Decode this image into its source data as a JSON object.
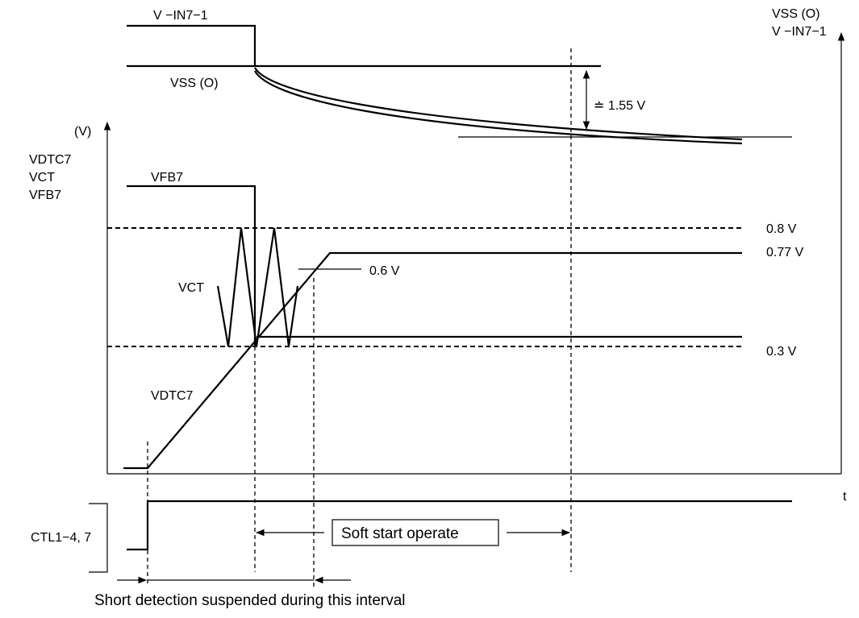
{
  "labels": {
    "v_in7_1_top": "V −IN7−1",
    "vss_o_top": "VSS (O)",
    "right_axis_line1": "VSS (O)",
    "right_axis_line2": "V −IN7−1",
    "delta_voltage": "≐ 1.55 V",
    "y_unit": "(V)",
    "y_label_line1": "VDTC7",
    "y_label_line2": "VCT",
    "y_label_line3": "VFB7",
    "vfb7": "VFB7",
    "vct": "VCT",
    "vdtc7": "VDTC7",
    "level_0_8": "0.8 V",
    "level_0_77": "0.77 V",
    "level_0_6": "0.6 V",
    "level_0_3": "0.3 V",
    "t_axis": "t",
    "ctl": "CTL1−4, 7",
    "soft_start": "Soft start operate",
    "short_detection": "Short detection suspended during this interval"
  },
  "colors": {
    "stroke": "#000000",
    "background": "#ffffff"
  }
}
